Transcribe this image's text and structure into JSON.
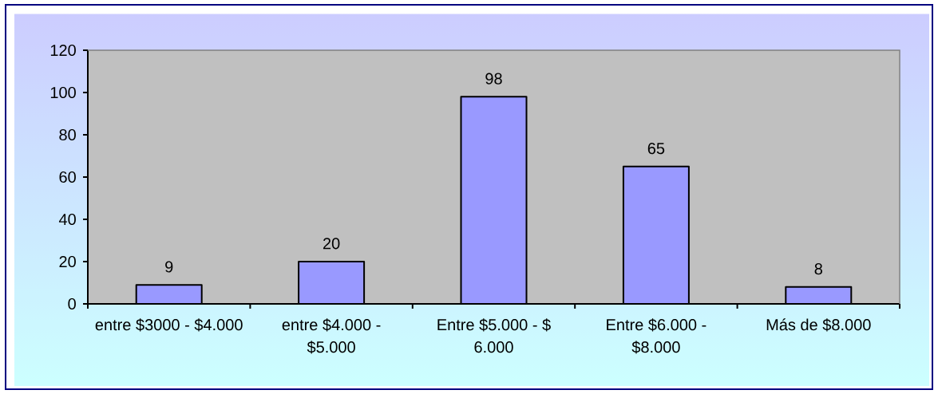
{
  "chart_data": {
    "type": "bar",
    "categories": [
      "entre $3000 - $4.000",
      "entre $4.000 - $5.000",
      "Entre $5.000 - $ 6.000",
      "Entre $6.000 - $8.000",
      "Más de $8.000"
    ],
    "values": [
      9,
      20,
      98,
      65,
      8
    ],
    "color": "#9999ff",
    "ylim": [
      0,
      120
    ],
    "yticks": [
      0,
      20,
      40,
      60,
      80,
      100,
      120
    ],
    "data_labels": true
  }
}
